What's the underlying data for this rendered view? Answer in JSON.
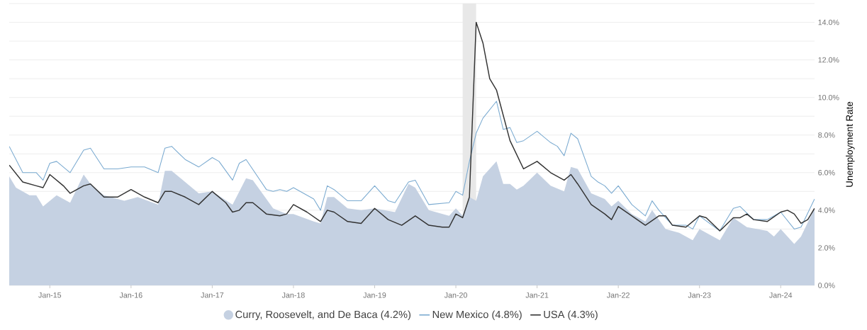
{
  "chart_data": {
    "type": "line",
    "ylabel": "Unemployment Rate",
    "xlim": [
      "2014-07",
      "2024-06"
    ],
    "xticks": [
      {
        "value": "2015-01",
        "label": "Jan-15"
      },
      {
        "value": "2016-01",
        "label": "Jan-16"
      },
      {
        "value": "2017-01",
        "label": "Jan-17"
      },
      {
        "value": "2018-01",
        "label": "Jan-18"
      },
      {
        "value": "2019-01",
        "label": "Jan-19"
      },
      {
        "value": "2020-01",
        "label": "Jan-20"
      },
      {
        "value": "2021-01",
        "label": "Jan-21"
      },
      {
        "value": "2022-01",
        "label": "Jan-22"
      },
      {
        "value": "2023-01",
        "label": "Jan-23"
      },
      {
        "value": "2024-01",
        "label": "Jan-24"
      }
    ],
    "ylim": [
      0,
      15
    ],
    "yticks": [
      {
        "value": 0,
        "label": "0.0%"
      },
      {
        "value": 1,
        "label": null
      },
      {
        "value": 2,
        "label": "2.0%"
      },
      {
        "value": 3,
        "label": null
      },
      {
        "value": 4,
        "label": "4.0%"
      },
      {
        "value": 5,
        "label": null
      },
      {
        "value": 6,
        "label": "6.0%"
      },
      {
        "value": 7,
        "label": null
      },
      {
        "value": 8,
        "label": "8.0%"
      },
      {
        "value": 9,
        "label": null
      },
      {
        "value": 10,
        "label": "10.0%"
      },
      {
        "value": 11,
        "label": null
      },
      {
        "value": 12,
        "label": "12.0%"
      },
      {
        "value": 13,
        "label": null
      },
      {
        "value": 14,
        "label": "14.0%"
      },
      {
        "value": 15,
        "label": null
      }
    ],
    "grid": "y",
    "legend": "bottom",
    "bands": [
      {
        "axis": "x",
        "from": "2020-02",
        "to": "2020-04",
        "color": "#e8e8e8"
      }
    ],
    "series": [
      {
        "name": "Curry, Roosevelt, and De Baca (4.2%)",
        "type": "area",
        "color": "#c5d1e2",
        "x": [
          "2014-07",
          "2014-08",
          "2014-10",
          "2014-11",
          "2014-12",
          "2015-02",
          "2015-04",
          "2015-06",
          "2015-07",
          "2015-09",
          "2015-12",
          "2016-02",
          "2016-05",
          "2016-06",
          "2016-07",
          "2016-09",
          "2016-11",
          "2017-01",
          "2017-04",
          "2017-06",
          "2017-07",
          "2017-10",
          "2017-12",
          "2018-01",
          "2018-04",
          "2018-05",
          "2018-06",
          "2018-07",
          "2018-09",
          "2018-11",
          "2019-01",
          "2019-04",
          "2019-06",
          "2019-07",
          "2019-09",
          "2019-12",
          "2020-01",
          "2020-02",
          "2020-03",
          "2020-04",
          "2020-05",
          "2020-07",
          "2020-08",
          "2020-09",
          "2020-10",
          "2020-11",
          "2021-01",
          "2021-03",
          "2021-05",
          "2021-06",
          "2021-07",
          "2021-09",
          "2021-11",
          "2021-12",
          "2022-01",
          "2022-03",
          "2022-05",
          "2022-06",
          "2022-08",
          "2022-10",
          "2022-12",
          "2023-01",
          "2023-04",
          "2023-06",
          "2023-08",
          "2023-11",
          "2023-12",
          "2024-01",
          "2024-03",
          "2024-04",
          "2024-06"
        ],
        "values": [
          5.8,
          5.2,
          4.8,
          4.8,
          4.2,
          4.8,
          4.4,
          5.9,
          5.4,
          4.8,
          4.5,
          4.7,
          4.3,
          6.1,
          6.1,
          5.5,
          4.9,
          5.0,
          4.3,
          5.7,
          5.6,
          4.1,
          3.8,
          3.8,
          3.4,
          3.3,
          4.7,
          4.7,
          4.1,
          4.0,
          4.1,
          3.9,
          5.4,
          5.2,
          4.0,
          3.7,
          4.1,
          3.7,
          4.7,
          4.5,
          5.8,
          6.6,
          5.4,
          5.4,
          5.1,
          5.3,
          6.0,
          5.3,
          5.0,
          6.3,
          6.2,
          4.9,
          4.6,
          4.2,
          4.5,
          3.8,
          3.4,
          4.0,
          3.0,
          2.8,
          2.4,
          3.0,
          2.4,
          3.6,
          3.1,
          2.9,
          2.6,
          3.0,
          2.2,
          2.6,
          4.1
        ]
      },
      {
        "name": "New Mexico (4.8%)",
        "color": "#7aaad0",
        "x": [
          "2014-07",
          "2014-09",
          "2014-11",
          "2014-12",
          "2015-01",
          "2015-02",
          "2015-04",
          "2015-06",
          "2015-07",
          "2015-09",
          "2015-11",
          "2016-01",
          "2016-03",
          "2016-05",
          "2016-06",
          "2016-07",
          "2016-09",
          "2016-11",
          "2017-01",
          "2017-02",
          "2017-04",
          "2017-05",
          "2017-06",
          "2017-09",
          "2017-10",
          "2017-11",
          "2017-12",
          "2018-01",
          "2018-04",
          "2018-05",
          "2018-06",
          "2018-07",
          "2018-09",
          "2018-11",
          "2019-01",
          "2019-03",
          "2019-04",
          "2019-06",
          "2019-07",
          "2019-09",
          "2019-12",
          "2020-01",
          "2020-02",
          "2020-03",
          "2020-04",
          "2020-05",
          "2020-07",
          "2020-08",
          "2020-09",
          "2020-10",
          "2020-11",
          "2021-01",
          "2021-03",
          "2021-04",
          "2021-05",
          "2021-06",
          "2021-07",
          "2021-09",
          "2021-10",
          "2021-11",
          "2021-12",
          "2022-01",
          "2022-03",
          "2022-05",
          "2022-06",
          "2022-07",
          "2022-09",
          "2022-11",
          "2022-12",
          "2023-01",
          "2023-04",
          "2023-06",
          "2023-07",
          "2023-09",
          "2023-11",
          "2024-01",
          "2024-03",
          "2024-04",
          "2024-06"
        ],
        "values": [
          7.4,
          6.0,
          6.0,
          5.6,
          6.5,
          6.6,
          6.0,
          7.2,
          7.3,
          6.2,
          6.2,
          6.3,
          6.3,
          6.0,
          7.3,
          7.4,
          6.7,
          6.3,
          6.8,
          6.6,
          5.6,
          6.5,
          6.7,
          5.1,
          5.0,
          5.1,
          5.0,
          5.2,
          4.6,
          4.0,
          5.3,
          5.1,
          4.5,
          4.5,
          5.3,
          4.5,
          4.4,
          5.5,
          5.6,
          4.3,
          4.4,
          5.0,
          4.8,
          6.6,
          8.1,
          8.9,
          9.8,
          8.3,
          8.4,
          7.6,
          7.7,
          8.2,
          7.6,
          7.4,
          6.9,
          8.1,
          7.8,
          5.8,
          5.5,
          5.3,
          4.9,
          5.3,
          4.3,
          3.7,
          4.5,
          4.0,
          3.2,
          3.2,
          3.0,
          3.7,
          2.9,
          4.1,
          4.2,
          3.5,
          3.5,
          3.9,
          3.0,
          3.1,
          4.6
        ]
      },
      {
        "name": "USA (4.3%)",
        "color": "#333333",
        "x": [
          "2014-07",
          "2014-09",
          "2014-11",
          "2014-12",
          "2015-01",
          "2015-03",
          "2015-04",
          "2015-06",
          "2015-07",
          "2015-09",
          "2015-11",
          "2016-01",
          "2016-03",
          "2016-05",
          "2016-06",
          "2016-07",
          "2016-09",
          "2016-11",
          "2017-01",
          "2017-03",
          "2017-04",
          "2017-05",
          "2017-06",
          "2017-07",
          "2017-09",
          "2017-11",
          "2017-12",
          "2018-01",
          "2018-03",
          "2018-05",
          "2018-06",
          "2018-07",
          "2018-09",
          "2018-11",
          "2019-01",
          "2019-03",
          "2019-05",
          "2019-07",
          "2019-09",
          "2019-11",
          "2019-12",
          "2020-01",
          "2020-02",
          "2020-03",
          "2020-04",
          "2020-05",
          "2020-06",
          "2020-07",
          "2020-09",
          "2020-11",
          "2021-01",
          "2021-03",
          "2021-05",
          "2021-06",
          "2021-07",
          "2021-09",
          "2021-11",
          "2021-12",
          "2022-01",
          "2022-03",
          "2022-05",
          "2022-07",
          "2022-08",
          "2022-09",
          "2022-11",
          "2023-01",
          "2023-02",
          "2023-04",
          "2023-06",
          "2023-07",
          "2023-08",
          "2023-09",
          "2023-11",
          "2024-01",
          "2024-02",
          "2024-03",
          "2024-04",
          "2024-05",
          "2024-06"
        ],
        "values": [
          6.4,
          5.5,
          5.3,
          5.2,
          5.9,
          5.3,
          4.9,
          5.3,
          5.4,
          4.7,
          4.7,
          5.1,
          4.7,
          4.4,
          5.0,
          5.0,
          4.7,
          4.3,
          5.0,
          4.4,
          3.9,
          4.0,
          4.4,
          4.4,
          3.8,
          3.7,
          3.8,
          4.3,
          3.9,
          3.4,
          4.0,
          3.9,
          3.4,
          3.3,
          4.1,
          3.5,
          3.2,
          3.7,
          3.2,
          3.1,
          3.1,
          3.8,
          3.6,
          4.7,
          14.0,
          12.9,
          11.0,
          10.4,
          7.7,
          6.2,
          6.6,
          6.0,
          5.6,
          5.9,
          5.4,
          4.3,
          3.8,
          3.5,
          4.2,
          3.7,
          3.2,
          3.7,
          3.7,
          3.2,
          3.1,
          3.7,
          3.6,
          2.9,
          3.6,
          3.6,
          3.8,
          3.5,
          3.4,
          3.9,
          4.0,
          3.8,
          3.3,
          3.5,
          4.1
        ]
      }
    ]
  }
}
